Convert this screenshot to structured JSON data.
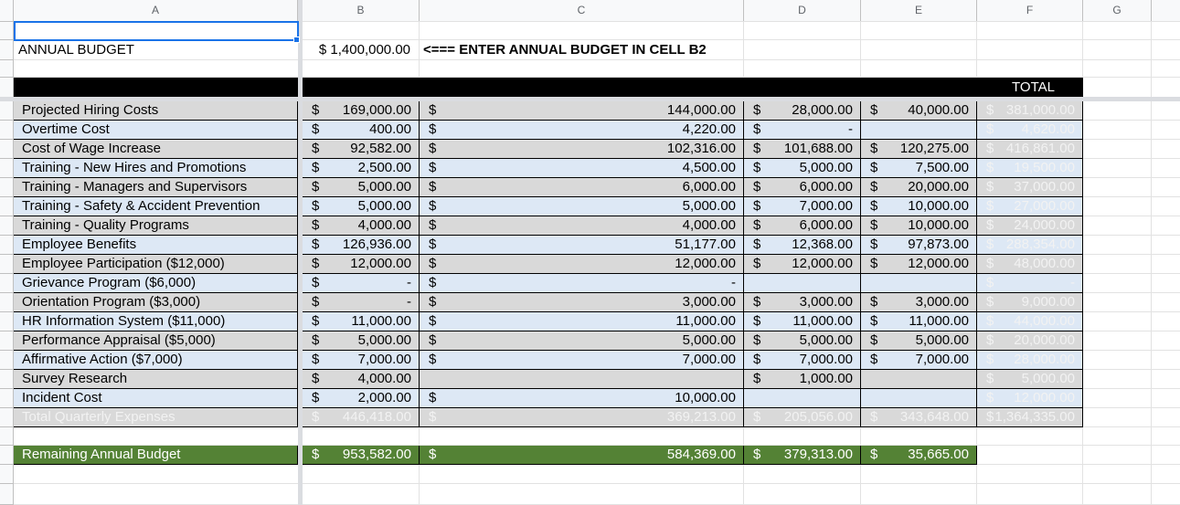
{
  "columns": [
    "A",
    "B",
    "C",
    "D",
    "E",
    "F",
    "G"
  ],
  "header": {
    "annual_budget_label": "ANNUAL BUDGET",
    "annual_budget_value": "$ 1,400,000.00",
    "instruction": "<=== ENTER ANNUAL BUDGET IN CELL B2",
    "total_label": "TOTAL"
  },
  "rows": [
    {
      "label": "Projected Hiring Costs",
      "b": "169,000.00",
      "c": "144,000.00",
      "d": "28,000.00",
      "e": "40,000.00",
      "f": "381,000.00",
      "bd": "$",
      "cd": "$",
      "dd": "$",
      "ed": "$",
      "fd": "$"
    },
    {
      "label": "Overtime Cost",
      "b": "400.00",
      "c": "4,220.00",
      "d": "-",
      "e": "",
      "f": "4,620.00",
      "bd": "$",
      "cd": "$",
      "dd": "$",
      "ed": "",
      "fd": "$"
    },
    {
      "label": "Cost of Wage Increase",
      "b": "92,582.00",
      "c": "102,316.00",
      "d": "101,688.00",
      "e": "120,275.00",
      "f": "416,861.00",
      "bd": "$",
      "cd": "$",
      "dd": "$",
      "ed": "$",
      "fd": "$"
    },
    {
      "label": "Training - New Hires and Promotions",
      "b": "2,500.00",
      "c": "4,500.00",
      "d": "5,000.00",
      "e": "7,500.00",
      "f": "19,500.00",
      "bd": "$",
      "cd": "$",
      "dd": "$",
      "ed": "$",
      "fd": "$"
    },
    {
      "label": "Training - Managers and Supervisors",
      "b": "5,000.00",
      "c": "6,000.00",
      "d": "6,000.00",
      "e": "20,000.00",
      "f": "37,000.00",
      "bd": "$",
      "cd": "$",
      "dd": "$",
      "ed": "$",
      "fd": "$"
    },
    {
      "label": "Training - Safety & Accident Prevention",
      "b": "5,000.00",
      "c": "5,000.00",
      "d": "7,000.00",
      "e": "10,000.00",
      "f": "27,000.00",
      "bd": "$",
      "cd": "$",
      "dd": "$",
      "ed": "$",
      "fd": "$"
    },
    {
      "label": "Training - Quality Programs",
      "b": "4,000.00",
      "c": "4,000.00",
      "d": "6,000.00",
      "e": "10,000.00",
      "f": "24,000.00",
      "bd": "$",
      "cd": "$",
      "dd": "$",
      "ed": "$",
      "fd": "$"
    },
    {
      "label": "Employee Benefits",
      "b": "126,936.00",
      "c": "51,177.00",
      "d": "12,368.00",
      "e": "97,873.00",
      "f": "288,354.00",
      "bd": "$",
      "cd": "$",
      "dd": "$",
      "ed": "$",
      "fd": "$"
    },
    {
      "label": "Employee Participation ($12,000)",
      "b": "12,000.00",
      "c": "12,000.00",
      "d": "12,000.00",
      "e": "12,000.00",
      "f": "48,000.00",
      "bd": "$",
      "cd": "$",
      "dd": "$",
      "ed": "$",
      "fd": "$"
    },
    {
      "label": "Grievance Program ($6,000)",
      "b": "-",
      "c": "-",
      "d": "",
      "e": "",
      "f": "-",
      "bd": "$",
      "cd": "$",
      "dd": "",
      "ed": "",
      "fd": "$"
    },
    {
      "label": "Orientation Program ($3,000)",
      "b": "-",
      "c": "3,000.00",
      "d": "3,000.00",
      "e": "3,000.00",
      "f": "9,000.00",
      "bd": "$",
      "cd": "$",
      "dd": "$",
      "ed": "$",
      "fd": "$"
    },
    {
      "label": "HR Information System ($11,000)",
      "b": "11,000.00",
      "c": "11,000.00",
      "d": "11,000.00",
      "e": "11,000.00",
      "f": "44,000.00",
      "bd": "$",
      "cd": "$",
      "dd": "$",
      "ed": "$",
      "fd": "$"
    },
    {
      "label": "Performance Appraisal ($5,000)",
      "b": "5,000.00",
      "c": "5,000.00",
      "d": "5,000.00",
      "e": "5,000.00",
      "f": "20,000.00",
      "bd": "$",
      "cd": "$",
      "dd": "$",
      "ed": "$",
      "fd": "$"
    },
    {
      "label": "Affirmative Action ($7,000)",
      "b": "7,000.00",
      "c": "7,000.00",
      "d": "7,000.00",
      "e": "7,000.00",
      "f": "28,000.00",
      "bd": "$",
      "cd": "$",
      "dd": "$",
      "ed": "$",
      "fd": "$"
    },
    {
      "label": "Survey Research",
      "b": "4,000.00",
      "c": "",
      "d": "1,000.00",
      "e": "",
      "f": "5,000.00",
      "bd": "$",
      "cd": "",
      "dd": "$",
      "ed": "",
      "fd": "$"
    },
    {
      "label": "Incident Cost",
      "b": "2,000.00",
      "c": "10,000.00",
      "d": "",
      "e": "",
      "f": "12,000.00",
      "bd": "$",
      "cd": "$",
      "dd": "",
      "ed": "",
      "fd": "$"
    },
    {
      "label": "Total Quarterly Expenses",
      "b": "446,418.00",
      "c": "369,213.00",
      "d": "205,056.00",
      "e": "343,648.00",
      "f": "1,364,335.00",
      "bd": "$",
      "cd": "$",
      "dd": "$",
      "ed": "$",
      "fd": "$"
    }
  ],
  "remaining": {
    "label": "Remaining Annual Budget",
    "b": "953,582.00",
    "c": "584,369.00",
    "d": "379,313.00",
    "e": "35,665.00",
    "bd": "$",
    "cd": "$",
    "dd": "$",
    "ed": "$"
  },
  "colors": {
    "row_gray": "#d9d9d9",
    "row_blue": "#dde8f5",
    "remaining_green": "#548235",
    "header_black": "#000000",
    "selection": "#1a73e8"
  }
}
